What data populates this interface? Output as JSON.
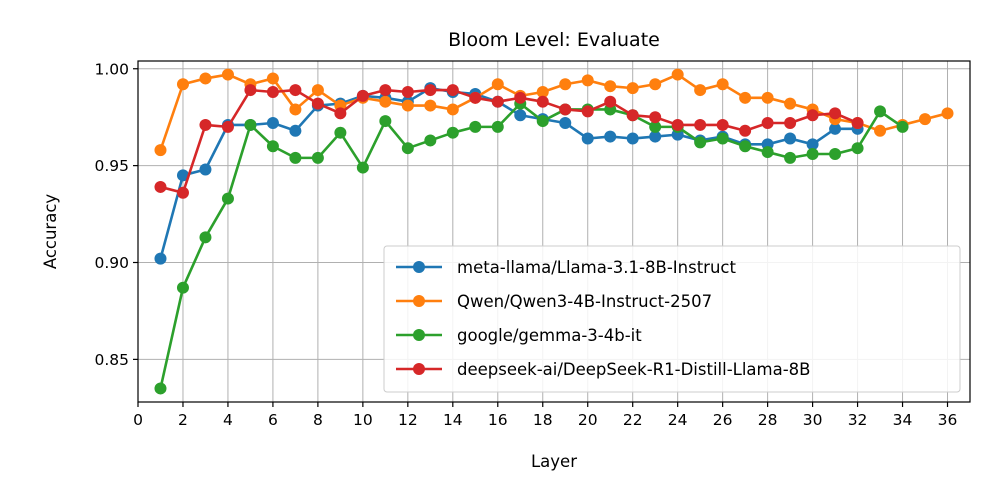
{
  "chart_data": {
    "type": "line",
    "title": "Bloom Level: Evaluate",
    "xlabel": "Layer",
    "ylabel": "Accuracy",
    "xlim": [
      0,
      37
    ],
    "ylim": [
      0.828,
      1.004
    ],
    "xticks": [
      0,
      2,
      4,
      6,
      8,
      10,
      12,
      14,
      16,
      18,
      20,
      22,
      24,
      26,
      28,
      30,
      32,
      34,
      36
    ],
    "yticks": [
      0.85,
      0.9,
      0.95,
      1.0
    ],
    "ytick_labels": [
      "0.85",
      "0.90",
      "0.95",
      "1.00"
    ],
    "grid": true,
    "legend_position": "lower-right",
    "series": [
      {
        "name": "meta-llama/Llama-3.1-8B-Instruct",
        "color": "#1f77b4",
        "x": [
          1,
          2,
          3,
          4,
          5,
          6,
          7,
          8,
          9,
          10,
          11,
          12,
          13,
          14,
          15,
          16,
          17,
          18,
          19,
          20,
          21,
          22,
          23,
          24,
          25,
          26,
          27,
          28,
          29,
          30,
          31,
          32
        ],
        "values": [
          0.902,
          0.945,
          0.948,
          0.971,
          0.971,
          0.972,
          0.968,
          0.981,
          0.982,
          0.986,
          0.985,
          0.983,
          0.99,
          0.988,
          0.987,
          0.983,
          0.976,
          0.974,
          0.972,
          0.964,
          0.965,
          0.964,
          0.965,
          0.966,
          0.963,
          0.965,
          0.961,
          0.961,
          0.964,
          0.961,
          0.969,
          0.969
        ]
      },
      {
        "name": "Qwen/Qwen3-4B-Instruct-2507",
        "color": "#ff7f0e",
        "x": [
          1,
          2,
          3,
          4,
          5,
          6,
          7,
          8,
          9,
          10,
          11,
          12,
          13,
          14,
          15,
          16,
          17,
          18,
          19,
          20,
          21,
          22,
          23,
          24,
          25,
          26,
          27,
          28,
          29,
          30,
          31,
          32,
          33,
          34,
          35,
          36
        ],
        "values": [
          0.958,
          0.992,
          0.995,
          0.997,
          0.992,
          0.995,
          0.979,
          0.989,
          0.981,
          0.985,
          0.983,
          0.981,
          0.981,
          0.979,
          0.985,
          0.992,
          0.986,
          0.988,
          0.992,
          0.994,
          0.991,
          0.99,
          0.992,
          0.997,
          0.989,
          0.992,
          0.985,
          0.985,
          0.982,
          0.979,
          0.974,
          0.972,
          0.968,
          0.971,
          0.974,
          0.977
        ]
      },
      {
        "name": "google/gemma-3-4b-it",
        "color": "#2ca02c",
        "x": [
          1,
          2,
          3,
          4,
          5,
          6,
          7,
          8,
          9,
          10,
          11,
          12,
          13,
          14,
          15,
          16,
          17,
          18,
          19,
          20,
          21,
          22,
          23,
          24,
          25,
          26,
          27,
          28,
          29,
          30,
          31,
          32,
          33,
          34
        ],
        "values": [
          0.835,
          0.887,
          0.913,
          0.933,
          0.971,
          0.96,
          0.954,
          0.954,
          0.967,
          0.949,
          0.973,
          0.959,
          0.963,
          0.967,
          0.97,
          0.97,
          0.982,
          0.973,
          0.979,
          0.979,
          0.979,
          0.976,
          0.97,
          0.97,
          0.962,
          0.964,
          0.96,
          0.957,
          0.954,
          0.956,
          0.956,
          0.959,
          0.978,
          0.97
        ]
      },
      {
        "name": "deepseek-ai/DeepSeek-R1-Distill-Llama-8B",
        "color": "#d62728",
        "x": [
          1,
          2,
          3,
          4,
          5,
          6,
          7,
          8,
          9,
          10,
          11,
          12,
          13,
          14,
          15,
          16,
          17,
          18,
          19,
          20,
          21,
          22,
          23,
          24,
          25,
          26,
          27,
          28,
          29,
          30,
          31,
          32
        ],
        "values": [
          0.939,
          0.936,
          0.971,
          0.97,
          0.989,
          0.988,
          0.989,
          0.982,
          0.977,
          0.986,
          0.989,
          0.988,
          0.989,
          0.989,
          0.985,
          0.983,
          0.985,
          0.983,
          0.979,
          0.978,
          0.983,
          0.976,
          0.975,
          0.971,
          0.971,
          0.971,
          0.968,
          0.972,
          0.972,
          0.976,
          0.977,
          0.972
        ]
      }
    ]
  }
}
